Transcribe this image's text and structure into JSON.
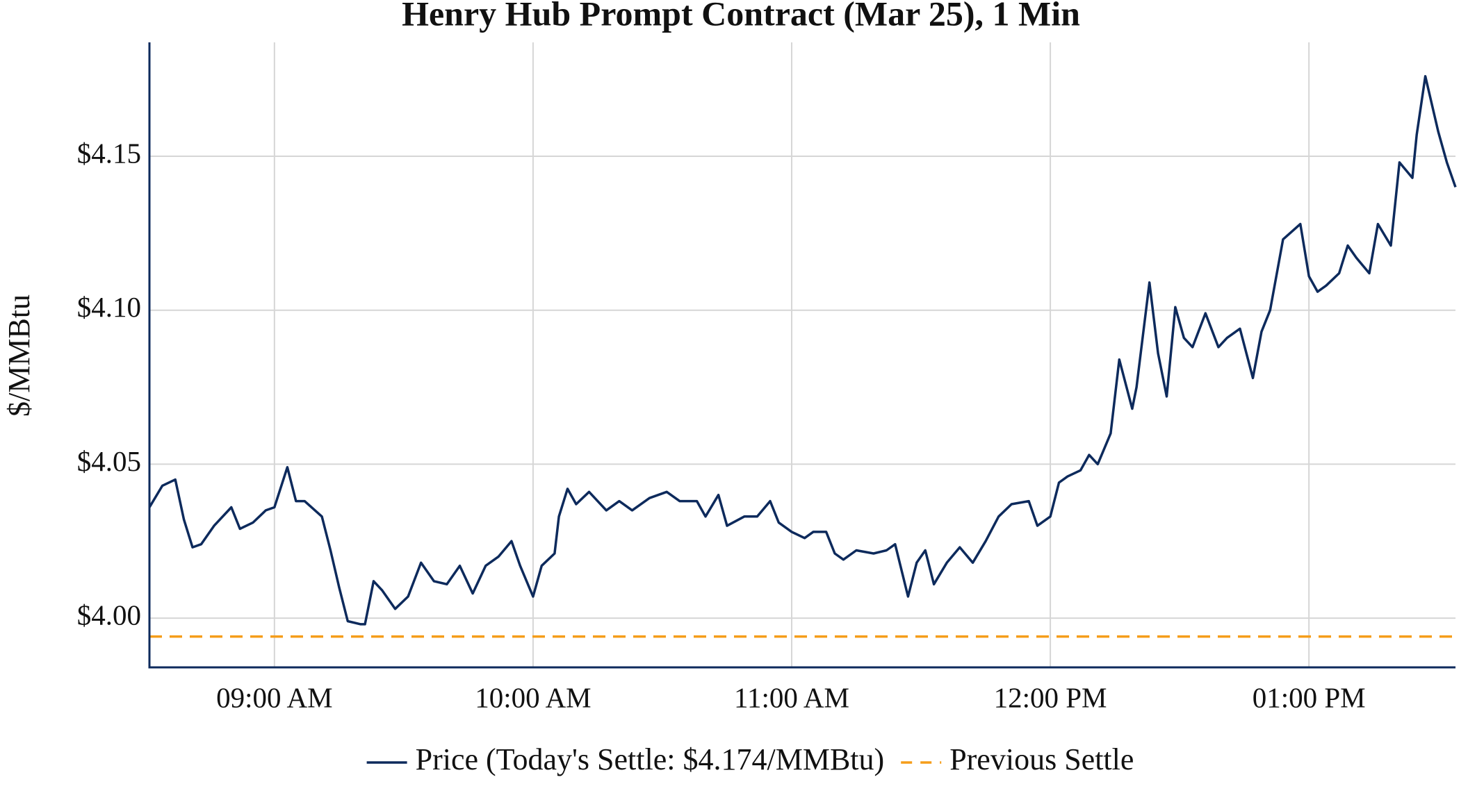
{
  "chart_data": {
    "type": "line",
    "title": "Henry Hub Prompt Contract (Mar 25), 1 Min",
    "y_label": "$/MMBtu",
    "x": [
      "08:31 AM",
      "08:34 AM",
      "08:37 AM",
      "08:39 AM",
      "08:41 AM",
      "08:43 AM",
      "08:46 AM",
      "08:50 AM",
      "08:52 AM",
      "08:55 AM",
      "08:58 AM",
      "09:00 AM",
      "09:03 AM",
      "09:05 AM",
      "09:07 AM",
      "09:11 AM",
      "09:13 AM",
      "09:15 AM",
      "09:17 AM",
      "09:20 AM",
      "09:21 AM",
      "09:23 AM",
      "09:25 AM",
      "09:28 AM",
      "09:31 AM",
      "09:34 AM",
      "09:37 AM",
      "09:40 AM",
      "09:43 AM",
      "09:46 AM",
      "09:49 AM",
      "09:52 AM",
      "09:55 AM",
      "09:57 AM",
      "10:00 AM",
      "10:02 AM",
      "10:05 AM",
      "10:06 AM",
      "10:08 AM",
      "10:10 AM",
      "10:13 AM",
      "10:17 AM",
      "10:20 AM",
      "10:23 AM",
      "10:27 AM",
      "10:31 AM",
      "10:34 AM",
      "10:38 AM",
      "10:40 AM",
      "10:43 AM",
      "10:45 AM",
      "10:49 AM",
      "10:52 AM",
      "10:55 AM",
      "10:57 AM",
      "11:00 AM",
      "11:03 AM",
      "11:05 AM",
      "11:08 AM",
      "11:10 AM",
      "11:12 AM",
      "11:15 AM",
      "11:19 AM",
      "11:22 AM",
      "11:24 AM",
      "11:27 AM",
      "11:29 AM",
      "11:31 AM",
      "11:33 AM",
      "11:36 AM",
      "11:39 AM",
      "11:42 AM",
      "11:45 AM",
      "11:48 AM",
      "11:51 AM",
      "11:55 AM",
      "11:57 AM",
      "12:00 PM",
      "12:02 PM",
      "12:04 PM",
      "12:07 PM",
      "12:09 PM",
      "12:11 PM",
      "12:14 PM",
      "12:16 PM",
      "12:19 PM",
      "12:20 PM",
      "12:23 PM",
      "12:25 PM",
      "12:27 PM",
      "12:29 PM",
      "12:31 PM",
      "12:33 PM",
      "12:36 PM",
      "12:39 PM",
      "12:41 PM",
      "12:44 PM",
      "12:47 PM",
      "12:49 PM",
      "12:51 PM",
      "12:54 PM",
      "12:58 PM",
      "01:00 PM",
      "01:02 PM",
      "01:04 PM",
      "01:07 PM",
      "01:09 PM",
      "01:11 PM",
      "01:14 PM",
      "01:16 PM",
      "01:19 PM",
      "01:21 PM",
      "01:24 PM",
      "01:25 PM",
      "01:27 PM",
      "01:30 PM",
      "01:32 PM",
      "01:34 PM"
    ],
    "series": [
      {
        "name": "Price (Today's Settle: $4.174/MMBtu)",
        "color": "#0d2a5c",
        "values": [
          4.036,
          4.043,
          4.045,
          4.032,
          4.023,
          4.024,
          4.03,
          4.036,
          4.029,
          4.031,
          4.035,
          4.036,
          4.049,
          4.038,
          4.038,
          4.033,
          4.022,
          4.01,
          3.999,
          3.998,
          3.998,
          4.012,
          4.009,
          4.003,
          4.007,
          4.018,
          4.012,
          4.011,
          4.017,
          4.008,
          4.017,
          4.02,
          4.025,
          4.017,
          4.007,
          4.017,
          4.021,
          4.033,
          4.042,
          4.037,
          4.041,
          4.035,
          4.038,
          4.035,
          4.039,
          4.041,
          4.038,
          4.038,
          4.033,
          4.04,
          4.03,
          4.033,
          4.033,
          4.038,
          4.031,
          4.028,
          4.026,
          4.028,
          4.028,
          4.021,
          4.019,
          4.022,
          4.021,
          4.022,
          4.024,
          4.007,
          4.018,
          4.022,
          4.011,
          4.018,
          4.023,
          4.018,
          4.025,
          4.033,
          4.037,
          4.038,
          4.03,
          4.033,
          4.044,
          4.046,
          4.048,
          4.053,
          4.05,
          4.06,
          4.084,
          4.068,
          4.075,
          4.109,
          4.086,
          4.072,
          4.101,
          4.091,
          4.088,
          4.099,
          4.088,
          4.091,
          4.094,
          4.078,
          4.093,
          4.1,
          4.123,
          4.128,
          4.111,
          4.106,
          4.108,
          4.112,
          4.121,
          4.117,
          4.112,
          4.128,
          4.121,
          4.148,
          4.143,
          4.157,
          4.176,
          4.158,
          4.148,
          4.14
        ]
      }
    ],
    "hlines": [
      {
        "name": "Previous Settle",
        "value": 3.994,
        "color": "#f59d1a",
        "dashed": true
      }
    ],
    "xlim": [
      "08:31 AM",
      "01:34 PM"
    ],
    "xticks": [
      "09:00 AM",
      "10:00 AM",
      "11:00 AM",
      "12:00 PM",
      "01:00 PM"
    ],
    "ylim": [
      3.984,
      4.187
    ],
    "yticks": [
      {
        "value": 4.0,
        "label": "$4.00"
      },
      {
        "value": 4.05,
        "label": "$4.05"
      },
      {
        "value": 4.1,
        "label": "$4.10"
      },
      {
        "value": 4.15,
        "label": "$4.15"
      }
    ],
    "grid": true,
    "legend": "bottom"
  }
}
